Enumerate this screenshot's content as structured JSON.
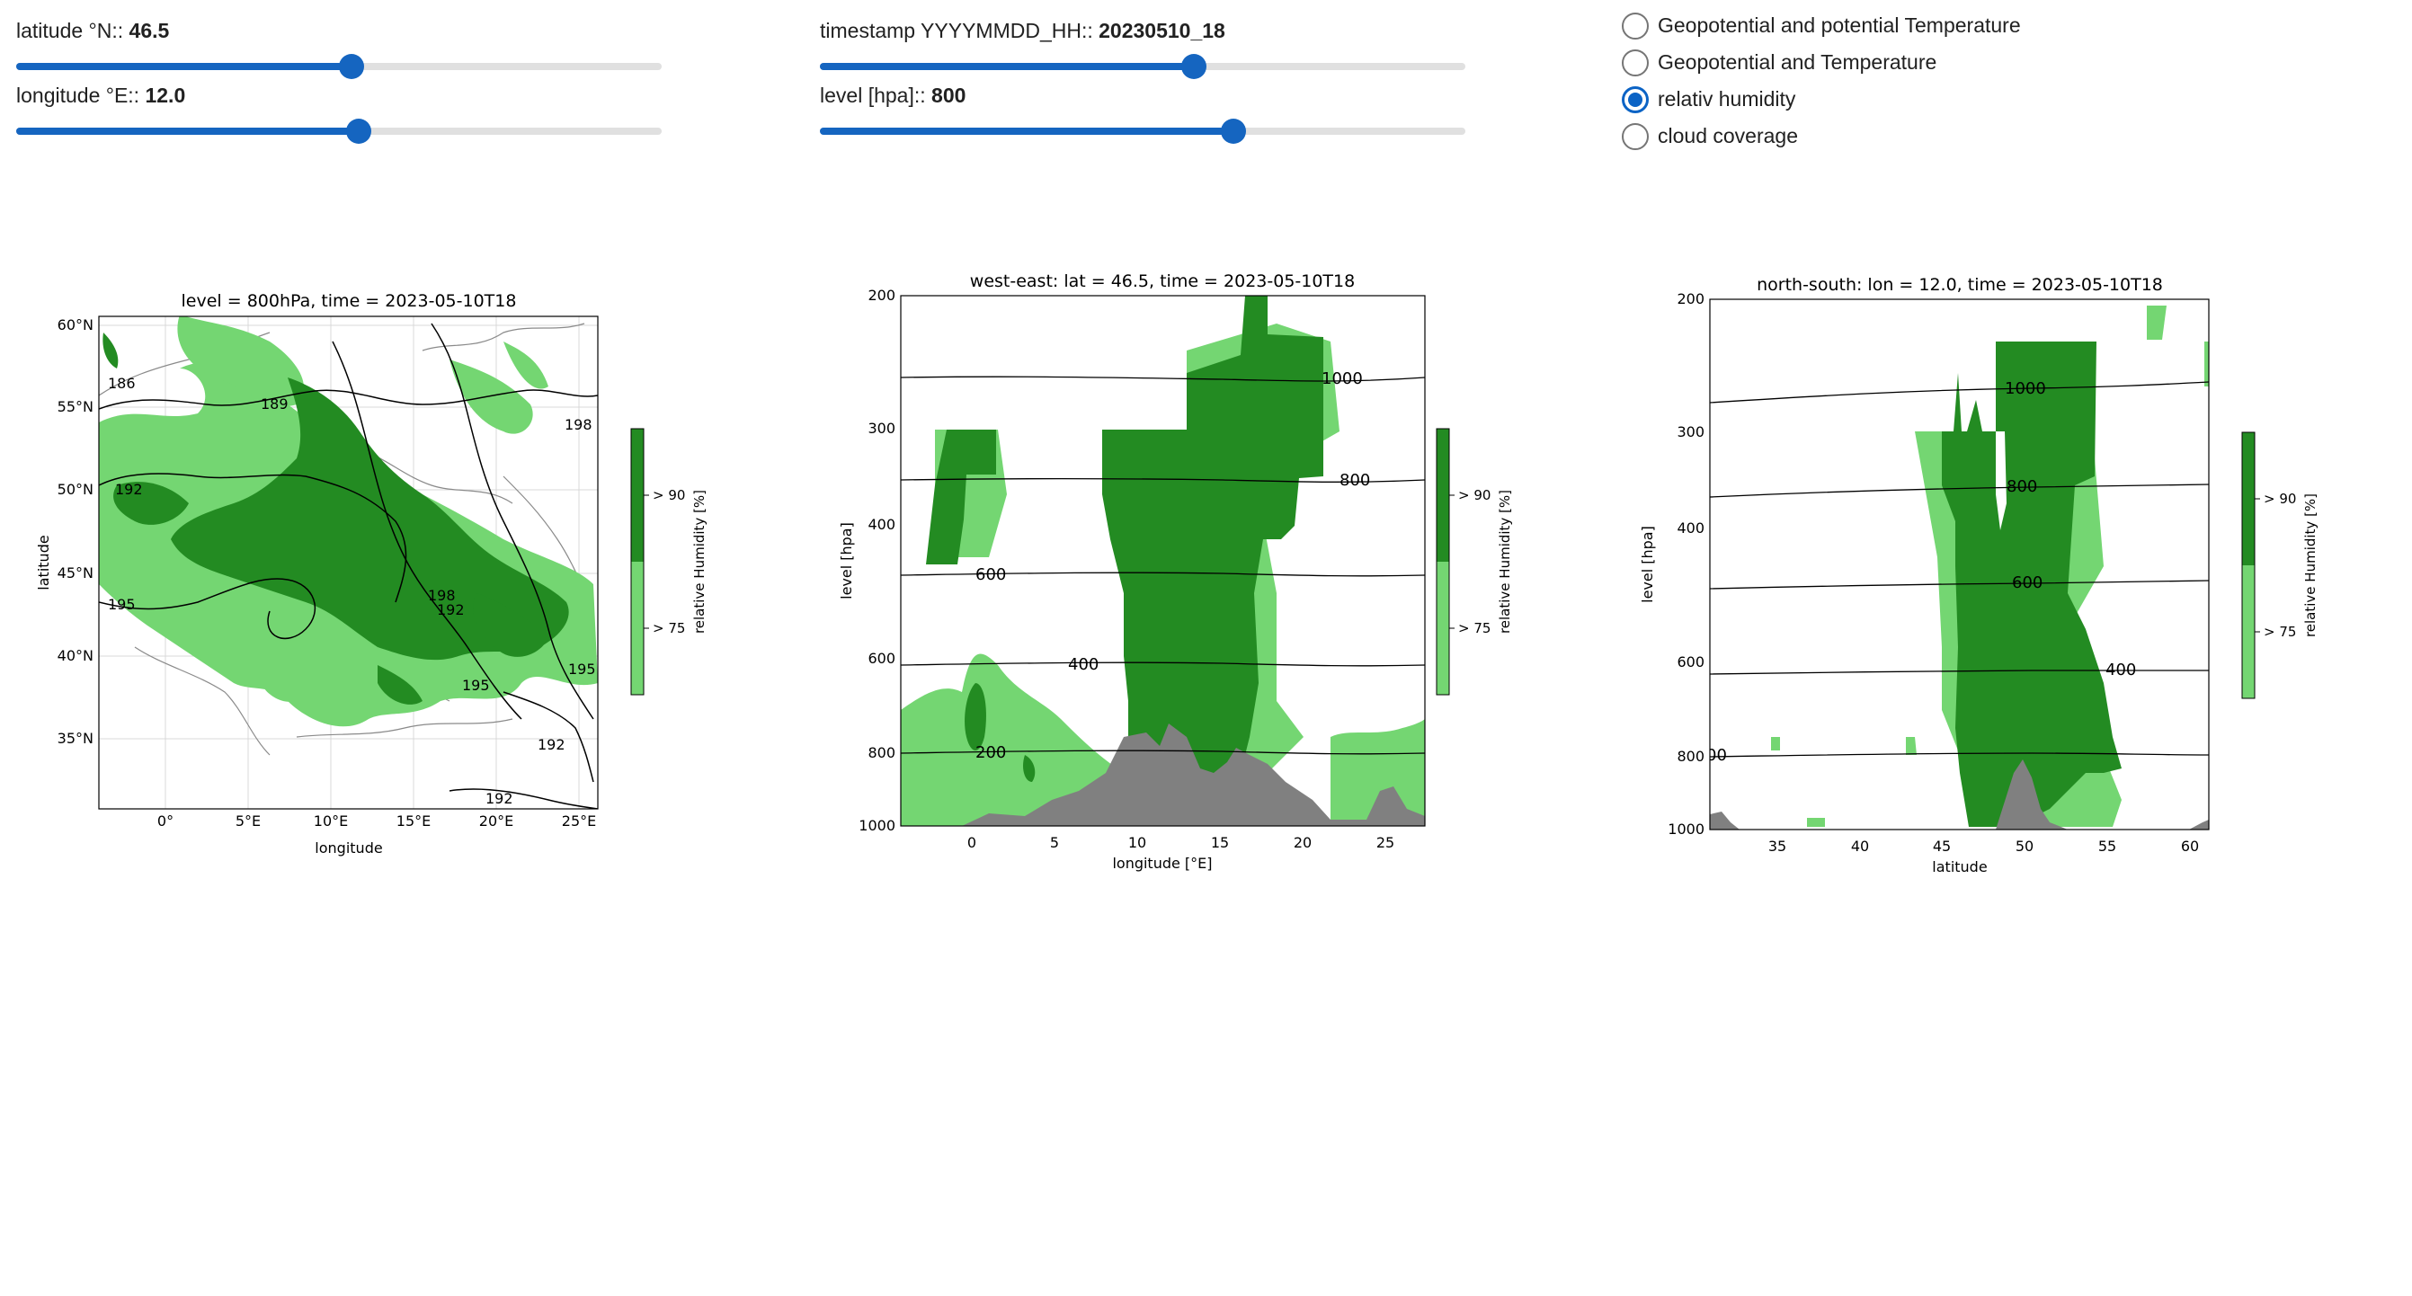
{
  "controls": {
    "latitude": {
      "label": "latitude °N:: ",
      "value": "46.5",
      "fraction": 0.52
    },
    "longitude": {
      "label": "longitude °E:: ",
      "value": "12.0",
      "fraction": 0.53
    },
    "timestamp": {
      "label": "timestamp YYYYMMDD_HH:: ",
      "value": "20230510_18",
      "fraction": 0.58
    },
    "level": {
      "label": "level [hpa]:: ",
      "value": "800",
      "fraction": 0.64
    }
  },
  "radio_options": [
    {
      "label": "Geopotential and potential Temperature",
      "selected": false
    },
    {
      "label": "Geopotential and Temperature",
      "selected": false
    },
    {
      "label": "relativ humidity",
      "selected": true
    },
    {
      "label": "cloud coverage",
      "selected": false
    }
  ],
  "colors": {
    "accent": "#1565c0",
    "dark_green": "#238b22",
    "light_green": "#74d672",
    "terrain": "#808080"
  },
  "chart_data": [
    {
      "type": "heatmap",
      "title": "level = 800hPa, time = 2023-05-10T18",
      "xlabel": "longitude",
      "ylabel": "latitude",
      "xticks": [
        "0°",
        "5°E",
        "10°E",
        "15°E",
        "20°E",
        "25°E"
      ],
      "yticks": [
        "60°N",
        "55°N",
        "50°N",
        "45°N",
        "40°N",
        "35°N"
      ],
      "xlim": [
        -4,
        26
      ],
      "ylim": [
        31,
        61
      ],
      "contour_labels": [
        "186",
        "189",
        "192",
        "195",
        "198",
        "198",
        "192",
        "195",
        "195",
        "192",
        "192"
      ],
      "colorbar": {
        "label": "relative Humidity [%]",
        "ticks": [
          "> 90",
          "> 75"
        ]
      }
    },
    {
      "type": "area",
      "title": "west-east: lat = 46.5, time = 2023-05-10T18",
      "xlabel": "longitude [°E]",
      "ylabel": "level [hpa]",
      "xticks": [
        "0",
        "5",
        "10",
        "15",
        "20",
        "25"
      ],
      "yticks": [
        "200",
        "300",
        "400",
        "600",
        "800",
        "1000"
      ],
      "xlim": [
        -4,
        26
      ],
      "ylim": [
        1000,
        200
      ],
      "contour_labels": [
        "1000",
        "800",
        "600",
        "400",
        "200"
      ],
      "colorbar": {
        "label": "relative Humidity [%]",
        "ticks": [
          "> 90",
          "> 75"
        ]
      }
    },
    {
      "type": "area",
      "title": "north-south: lon = 12.0, time = 2023-05-10T18",
      "xlabel": "latitude",
      "ylabel": "level [hpa]",
      "xticks": [
        "35",
        "40",
        "45",
        "50",
        "55",
        "60"
      ],
      "yticks": [
        "200",
        "300",
        "400",
        "600",
        "800",
        "1000"
      ],
      "xlim": [
        31,
        61
      ],
      "ylim": [
        1000,
        200
      ],
      "contour_labels": [
        "1000",
        "800",
        "600",
        "400",
        "00"
      ],
      "colorbar": {
        "label": "relative Humidity [%]",
        "ticks": [
          "> 90",
          "> 75"
        ]
      }
    }
  ]
}
